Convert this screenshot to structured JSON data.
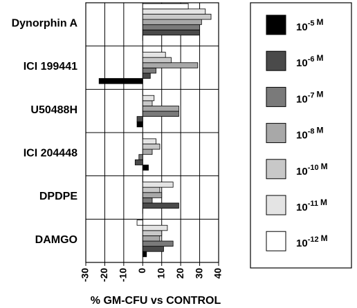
{
  "chart_data": {
    "type": "bar",
    "orientation": "horizontal",
    "xlabel": "% GM-CFU vs CONTROL",
    "xlim": [
      -30,
      40
    ],
    "xticks": [
      -30,
      -20,
      -10,
      0,
      10,
      20,
      30,
      40
    ],
    "grid": true,
    "legend_placement": "right",
    "categories": [
      "Dynorphin A",
      "ICI 199441",
      "U50488H",
      "ICI 204448",
      "DPDPE",
      "DAMGO"
    ],
    "series": [
      {
        "name": "10-5 M",
        "base": "10",
        "exp": "-5",
        "color": "#000000",
        "values": [
          0,
          -23,
          -3,
          3,
          0,
          2
        ]
      },
      {
        "name": "10-6 M",
        "base": "10",
        "exp": "-6",
        "color": "#4a4a4a",
        "values": [
          30,
          4,
          -3,
          -4,
          19,
          11
        ]
      },
      {
        "name": "10-7 M",
        "base": "10",
        "exp": "-7",
        "color": "#7a7a7a",
        "values": [
          30,
          7,
          19,
          -2,
          5,
          16
        ]
      },
      {
        "name": "10-8 M",
        "base": "10",
        "exp": "-8",
        "color": "#a8a8a8",
        "values": [
          31,
          29,
          19,
          5,
          10,
          9
        ]
      },
      {
        "name": "10-10 M",
        "base": "10",
        "exp": "-10",
        "color": "#c8c8c8",
        "values": [
          36,
          15,
          5,
          9,
          9,
          10
        ]
      },
      {
        "name": "10-11 M",
        "base": "10",
        "exp": "-11",
        "color": "#e4e4e4",
        "values": [
          33,
          12,
          6,
          7,
          16,
          13
        ]
      },
      {
        "name": "10-12 M",
        "base": "10",
        "exp": "-12",
        "color": "#ffffff",
        "values": [
          24,
          0,
          0,
          0,
          0,
          -3
        ]
      }
    ]
  }
}
